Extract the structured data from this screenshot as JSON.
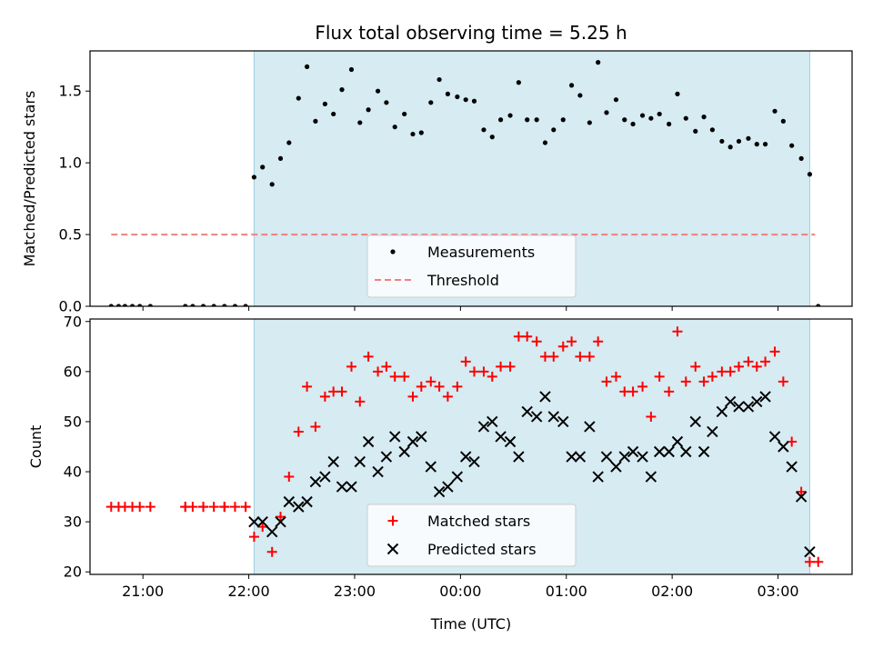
{
  "chart_data": [
    {
      "type": "scatter",
      "title": "Flux total observing time = 5.25 h",
      "xlabel": "",
      "ylabel": "Matched/Predicted stars",
      "xlim": [
        -3.5,
        3.7
      ],
      "ylim": [
        0,
        1.78
      ],
      "yticks": [
        0.0,
        0.5,
        1.0,
        1.5
      ],
      "ytick_labels": [
        "0.0",
        "0.5",
        "1.0",
        "1.5"
      ],
      "legend_position": "bottom-center",
      "shaded_span": {
        "x_start": -1.95,
        "x_end": 3.3
      },
      "series": [
        {
          "name": "Measurements",
          "marker": "dot",
          "color": "#000000",
          "x": [
            -3.3,
            -3.23,
            -3.17,
            -3.1,
            -3.03,
            -2.93,
            -2.6,
            -2.53,
            -2.43,
            -2.33,
            -2.23,
            -2.13,
            -2.03,
            -1.95,
            -1.87,
            -1.78,
            -1.7,
            -1.62,
            -1.53,
            -1.45,
            -1.37,
            -1.28,
            -1.2,
            -1.12,
            -1.03,
            -0.95,
            -0.87,
            -0.78,
            -0.7,
            -0.62,
            -0.53,
            -0.45,
            -0.37,
            -0.28,
            -0.2,
            -0.12,
            -0.03,
            0.05,
            0.13,
            0.22,
            0.3,
            0.38,
            0.47,
            0.55,
            0.63,
            0.72,
            0.8,
            0.88,
            0.97,
            1.05,
            1.13,
            1.22,
            1.3,
            1.38,
            1.47,
            1.55,
            1.63,
            1.72,
            1.8,
            1.88,
            1.97,
            2.05,
            2.13,
            2.22,
            2.3,
            2.38,
            2.47,
            2.55,
            2.63,
            2.72,
            2.8,
            2.88,
            2.97,
            3.05,
            3.13,
            3.22,
            3.3,
            3.38
          ],
          "y": [
            0,
            0,
            0,
            0,
            0,
            0,
            0,
            0,
            0,
            0,
            0,
            0,
            0,
            0.9,
            0.97,
            0.85,
            1.03,
            1.14,
            1.45,
            1.67,
            1.29,
            1.41,
            1.34,
            1.51,
            1.65,
            1.28,
            1.37,
            1.5,
            1.42,
            1.25,
            1.34,
            1.2,
            1.21,
            1.42,
            1.58,
            1.48,
            1.46,
            1.44,
            1.43,
            1.23,
            1.18,
            1.3,
            1.33,
            1.56,
            1.3,
            1.3,
            1.14,
            1.23,
            1.3,
            1.54,
            1.47,
            1.28,
            1.7,
            1.35,
            1.44,
            1.3,
            1.27,
            1.33,
            1.31,
            1.34,
            1.27,
            1.48,
            1.31,
            1.22,
            1.32,
            1.23,
            1.15,
            1.11,
            1.15,
            1.17,
            1.13,
            1.13,
            1.36,
            1.29,
            1.12,
            1.03,
            0.92,
            0
          ]
        },
        {
          "name": "Threshold",
          "marker": "dashed-line",
          "color": "#f08080",
          "x": [
            -3.3,
            3.35
          ],
          "y": [
            0.5,
            0.5
          ]
        }
      ]
    },
    {
      "type": "scatter",
      "title": "",
      "xlabel": "Time (UTC)",
      "ylabel": "Count",
      "xlim": [
        -3.5,
        3.7
      ],
      "ylim": [
        19.5,
        70.5
      ],
      "xticks": [
        -3,
        -2,
        -1,
        0,
        1,
        2,
        3
      ],
      "xtick_labels": [
        "21:00",
        "22:00",
        "23:00",
        "00:00",
        "01:00",
        "02:00",
        "03:00"
      ],
      "yticks": [
        20,
        30,
        40,
        50,
        60,
        70
      ],
      "ytick_labels": [
        "20",
        "30",
        "40",
        "50",
        "60",
        "70"
      ],
      "legend_position": "bottom-center",
      "shaded_span": {
        "x_start": -1.95,
        "x_end": 3.3
      },
      "series": [
        {
          "name": "Matched stars",
          "marker": "plus",
          "color": "#ff0000",
          "x": [
            -3.3,
            -3.23,
            -3.17,
            -3.1,
            -3.03,
            -2.93,
            -2.6,
            -2.53,
            -2.43,
            -2.33,
            -2.23,
            -2.13,
            -2.03,
            -1.95,
            -1.87,
            -1.78,
            -1.7,
            -1.62,
            -1.53,
            -1.45,
            -1.37,
            -1.28,
            -1.2,
            -1.12,
            -1.03,
            -0.95,
            -0.87,
            -0.78,
            -0.7,
            -0.62,
            -0.53,
            -0.45,
            -0.37,
            -0.28,
            -0.2,
            -0.12,
            -0.03,
            0.05,
            0.13,
            0.22,
            0.3,
            0.38,
            0.47,
            0.55,
            0.63,
            0.72,
            0.8,
            0.88,
            0.97,
            1.05,
            1.13,
            1.22,
            1.3,
            1.38,
            1.47,
            1.55,
            1.63,
            1.72,
            1.8,
            1.88,
            1.97,
            2.05,
            2.13,
            2.22,
            2.3,
            2.38,
            2.47,
            2.55,
            2.63,
            2.72,
            2.8,
            2.88,
            2.97,
            3.05,
            3.13,
            3.22,
            3.3,
            3.38,
            -2.6,
            -2.43,
            -2.23,
            -2.03
          ],
          "y": [
            33,
            33,
            33,
            33,
            33,
            33,
            33,
            33,
            33,
            33,
            33,
            33,
            33,
            27,
            29,
            24,
            31,
            39,
            48,
            57,
            49,
            55,
            56,
            56,
            61,
            54,
            63,
            60,
            61,
            59,
            59,
            55,
            57,
            58,
            57,
            55,
            57,
            62,
            60,
            60,
            59,
            61,
            61,
            67,
            67,
            66,
            63,
            63,
            65,
            66,
            63,
            63,
            66,
            58,
            59,
            56,
            56,
            57,
            51,
            59,
            56,
            68,
            58,
            61,
            58,
            59,
            60,
            60,
            61,
            62,
            61,
            62,
            64,
            58,
            46,
            36,
            22,
            22,
            33,
            33,
            33,
            33
          ]
        },
        {
          "name": "Predicted stars",
          "marker": "x",
          "color": "#000000",
          "x": [
            -1.95,
            -1.87,
            -1.78,
            -1.7,
            -1.62,
            -1.53,
            -1.45,
            -1.37,
            -1.28,
            -1.2,
            -1.12,
            -1.03,
            -0.95,
            -0.87,
            -0.78,
            -0.7,
            -0.62,
            -0.53,
            -0.45,
            -0.37,
            -0.28,
            -0.2,
            -0.12,
            -0.03,
            0.05,
            0.13,
            0.22,
            0.3,
            0.38,
            0.47,
            0.55,
            0.63,
            0.72,
            0.8,
            0.88,
            0.97,
            1.05,
            1.13,
            1.22,
            1.3,
            1.38,
            1.47,
            1.55,
            1.63,
            1.72,
            1.8,
            1.88,
            1.97,
            2.05,
            2.13,
            2.22,
            2.3,
            2.38,
            2.47,
            2.55,
            2.63,
            2.72,
            2.8,
            2.88,
            2.97,
            3.05,
            3.13,
            3.22,
            3.3
          ],
          "y": [
            30,
            30,
            28,
            30,
            34,
            33,
            34,
            38,
            39,
            42,
            37,
            37,
            42,
            46,
            40,
            43,
            47,
            44,
            46,
            47,
            41,
            36,
            37,
            39,
            43,
            42,
            49,
            50,
            47,
            46,
            43,
            52,
            51,
            55,
            51,
            50,
            43,
            43,
            49,
            39,
            43,
            41,
            43,
            44,
            43,
            39,
            44,
            44,
            46,
            44,
            50,
            44,
            48,
            52,
            54,
            53,
            53,
            54,
            55,
            47,
            45,
            41,
            35,
            24
          ]
        }
      ]
    }
  ]
}
